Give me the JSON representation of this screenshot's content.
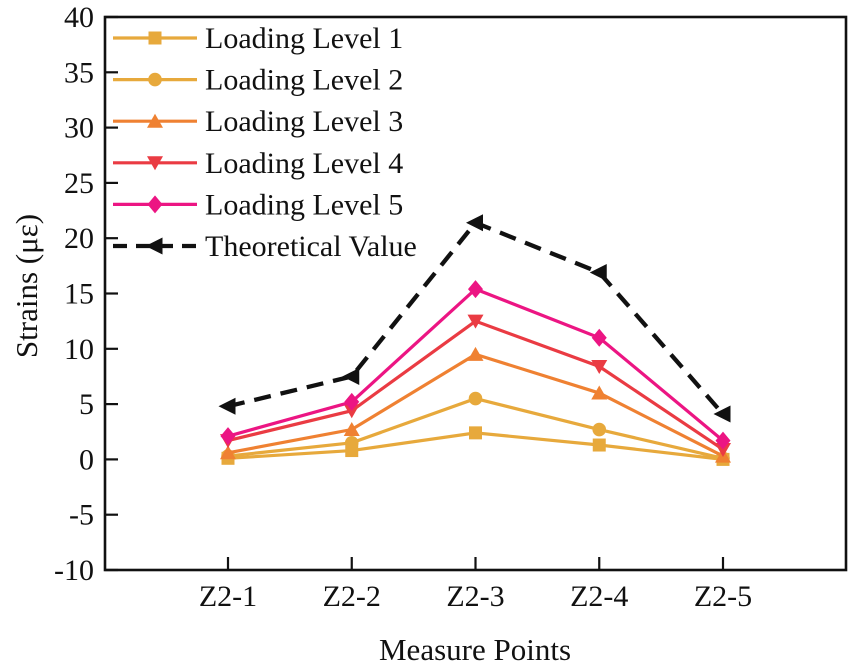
{
  "chart_data": {
    "type": "line",
    "title": "",
    "xlabel": "Measure Points",
    "ylabel": "Strains (με)",
    "categories": [
      "Z2-1",
      "Z2-2",
      "Z2-3",
      "Z2-4",
      "Z2-5"
    ],
    "ylim": [
      -10,
      40
    ],
    "yticks": [
      40,
      35,
      30,
      25,
      20,
      15,
      10,
      5,
      0,
      -5,
      -10
    ],
    "grid": false,
    "frame": true,
    "legend_position": "top-left",
    "axis_color": "#111111",
    "series": [
      {
        "name": "Loading Level 1",
        "marker": "square",
        "color": "#E7A93C",
        "dash": false,
        "values": [
          0.1,
          0.8,
          2.4,
          1.3,
          0.0
        ]
      },
      {
        "name": "Loading Level 2",
        "marker": "circle",
        "color": "#E7A93C",
        "dash": false,
        "values": [
          0.3,
          1.5,
          5.5,
          2.7,
          0.1
        ]
      },
      {
        "name": "Loading Level 3",
        "marker": "triangle-up",
        "color": "#EF8132",
        "dash": false,
        "values": [
          0.6,
          2.7,
          9.5,
          6.0,
          0.3
        ]
      },
      {
        "name": "Loading Level 4",
        "marker": "triangle-down",
        "color": "#EA3B43",
        "dash": false,
        "values": [
          1.7,
          4.4,
          12.5,
          8.4,
          0.9
        ]
      },
      {
        "name": "Loading Level 5",
        "marker": "diamond",
        "color": "#EC1583",
        "dash": false,
        "values": [
          2.1,
          5.2,
          15.4,
          11.0,
          1.7
        ]
      },
      {
        "name": "Theoretical Value",
        "marker": "triangle-left",
        "color": "#111111",
        "dash": true,
        "values": [
          4.8,
          7.5,
          21.4,
          16.9,
          4.1
        ]
      }
    ]
  }
}
